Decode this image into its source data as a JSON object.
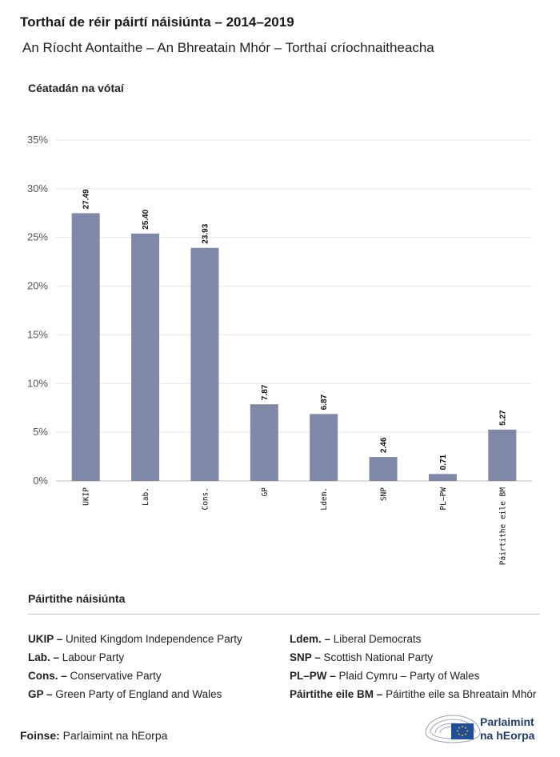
{
  "header": {
    "title": "Torthaí de réir páirtí náisiúnta – 2014–2019",
    "subtitle": "An Ríocht Aontaithe – An Bhreatain Mhór – Torthaí críochnaitheacha"
  },
  "chart_data": {
    "type": "bar",
    "ylabel": "Céatadán na vótaí",
    "categories": [
      "UKIP",
      "Lab.",
      "Cons.",
      "GP",
      "Ldem.",
      "SNP",
      "PL–PW",
      "Páirtithe eile BM"
    ],
    "values": [
      27.49,
      25.4,
      23.93,
      7.87,
      6.87,
      2.46,
      0.71,
      5.27
    ],
    "value_labels": [
      "27.49",
      "25.40",
      "23.93",
      "7.87",
      "6.87",
      "2.46",
      "0.71",
      "5.27"
    ],
    "ylim": [
      0,
      35
    ],
    "yticks": [
      0,
      5,
      10,
      15,
      20,
      25,
      30,
      35
    ],
    "ytick_labels": [
      "0%",
      "5%",
      "10%",
      "15%",
      "20%",
      "25%",
      "30%",
      "35%"
    ],
    "grid": true,
    "bar_color": "#7f88a6"
  },
  "legend": {
    "title": "Páirtithe náisiúnta",
    "left": [
      {
        "abbr": "UKIP –",
        "name": "United Kingdom Independence Party"
      },
      {
        "abbr": "Lab. –",
        "name": "Labour Party"
      },
      {
        "abbr": "Cons. –",
        "name": "Conservative Party"
      },
      {
        "abbr": "GP –",
        "name": "Green Party of England and Wales"
      }
    ],
    "right": [
      {
        "abbr": "Ldem. –",
        "name": "Liberal Democrats"
      },
      {
        "abbr": "SNP –",
        "name": "Scottish National Party"
      },
      {
        "abbr": "PL–PW –",
        "name": "Plaid Cymru – Party of Wales"
      },
      {
        "abbr": "Páirtithe eile BM –",
        "name": "Páirtithe eile sa Bhreatain Mhór"
      }
    ]
  },
  "footer": {
    "source_label": "Foinse:",
    "source_text": "Parlaimint na hEorpa",
    "logo_line1": "Parlaimint",
    "logo_line2": "na hEorpa"
  }
}
